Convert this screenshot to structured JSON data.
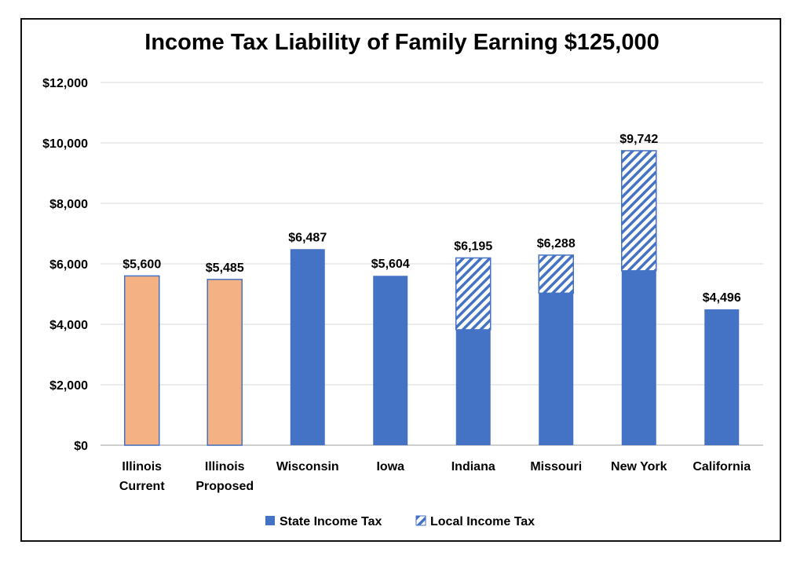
{
  "chart_data": {
    "type": "bar",
    "title": "Income Tax Liability of Family Earning $125,000",
    "xlabel": "",
    "ylabel": "",
    "ylim": [
      0,
      12000
    ],
    "yticks": [
      0,
      2000,
      4000,
      6000,
      8000,
      10000,
      12000
    ],
    "ytick_labels": [
      "$0",
      "$2,000",
      "$4,000",
      "$6,000",
      "$8,000",
      "$10,000",
      "$12,000"
    ],
    "grid": true,
    "legend_position": "bottom",
    "categories": [
      [
        "Illinois",
        "Current"
      ],
      [
        "Illinois",
        "Proposed"
      ],
      [
        "Wisconsin"
      ],
      [
        "Iowa"
      ],
      [
        "Indiana"
      ],
      [
        "Missouri"
      ],
      [
        "New York"
      ],
      [
        "California"
      ]
    ],
    "series": [
      {
        "name": "State Income Tax",
        "values": [
          5600,
          5485,
          6487,
          5604,
          3820,
          5030,
          5770,
          4496
        ]
      },
      {
        "name": "Local Income Tax",
        "values": [
          0,
          0,
          0,
          0,
          2375,
          1258,
          3972,
          0
        ]
      }
    ],
    "totals_labels": [
      "$5,600",
      "$5,485",
      "$6,487",
      "$5,604",
      "$6,195",
      "$6,288",
      "$9,742",
      "$4,496"
    ],
    "colors": {
      "state": "#4472C4",
      "local_hatch": "#4472C4",
      "illinois": "#F4B183",
      "illinois_border": "#4472C4",
      "grid": "#D9D9D9",
      "axis": "#BFBFBF"
    },
    "highlight_categories": [
      0,
      1
    ]
  }
}
